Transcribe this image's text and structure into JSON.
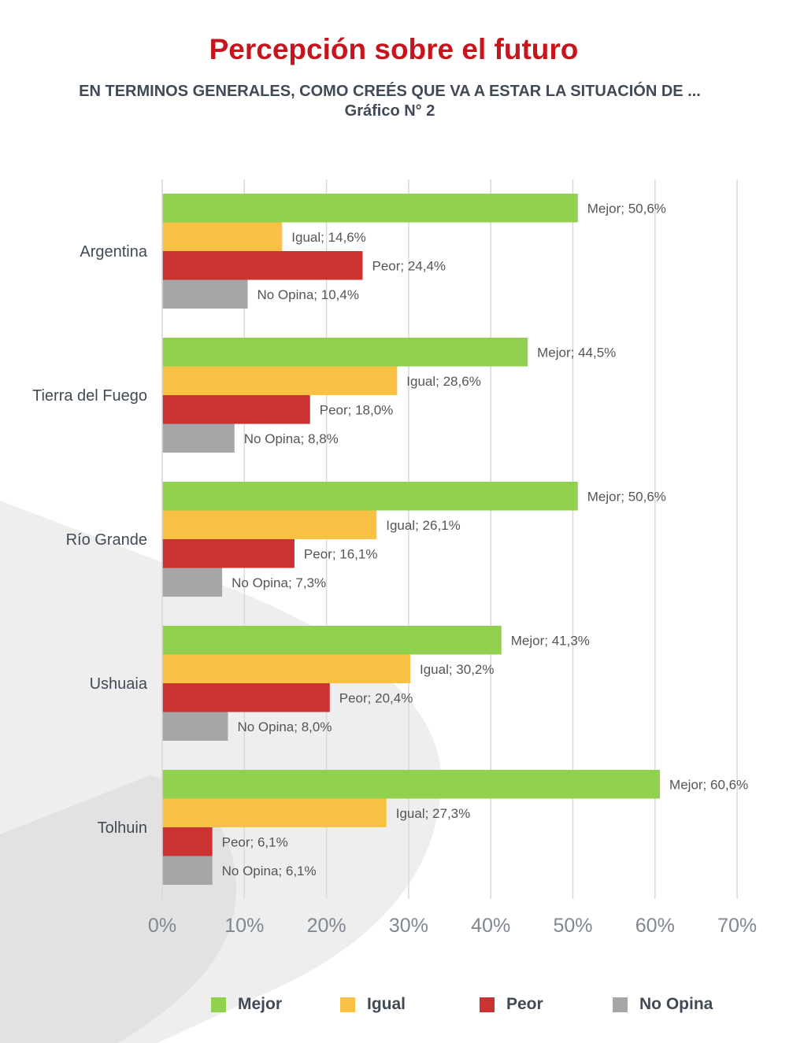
{
  "header": {
    "title": "Percepción sobre el futuro",
    "subtitle_line1": "EN TERMINOS GENERALES, COMO CREÉS QUE VA A ESTAR LA SITUACIÓN DE ...",
    "subtitle_line2": "Gráfico N° 2"
  },
  "colors": {
    "title": "#c4161c",
    "Mejor": "#92d050",
    "Igual": "#f8c144",
    "Peor": "#cc3232",
    "No Opina": "#a6a6a6"
  },
  "chart_data": {
    "type": "bar",
    "orientation": "horizontal",
    "categories": [
      "Argentina",
      "Tierra del Fuego",
      "Río Grande",
      "Ushuaia",
      "Tolhuin"
    ],
    "series": [
      {
        "name": "Mejor",
        "values": [
          50.6,
          44.5,
          50.6,
          41.3,
          60.6
        ],
        "labels": [
          "Mejor; 50,6%",
          "Mejor; 44,5%",
          "Mejor; 50,6%",
          "Mejor; 41,3%",
          "Mejor; 60,6%"
        ]
      },
      {
        "name": "Igual",
        "values": [
          14.6,
          28.6,
          26.1,
          30.2,
          27.3
        ],
        "labels": [
          "Igual; 14,6%",
          "Igual; 28,6%",
          "Igual; 26,1%",
          "Igual; 30,2%",
          "Igual; 27,3%"
        ]
      },
      {
        "name": "Peor",
        "values": [
          24.4,
          18.0,
          16.1,
          20.4,
          6.1
        ],
        "labels": [
          "Peor; 24,4%",
          "Peor; 18,0%",
          "Peor; 16,1%",
          "Peor; 20,4%",
          "Peor; 6,1%"
        ]
      },
      {
        "name": "No Opina",
        "values": [
          10.4,
          8.8,
          7.3,
          8.0,
          6.1
        ],
        "labels": [
          "No Opina; 10,4%",
          "No Opina; 8,8%",
          "No Opina; 7,3%",
          "No Opina; 8,0%",
          "No Opina; 6,1%"
        ]
      }
    ],
    "xlim": [
      0,
      70
    ],
    "xticks": [
      0,
      10,
      20,
      30,
      40,
      50,
      60,
      70
    ],
    "xtick_labels": [
      "0%",
      "10%",
      "20%",
      "30%",
      "40%",
      "50%",
      "60%",
      "70%"
    ],
    "grid": true,
    "legend": {
      "position": "bottom",
      "entries": [
        "Mejor",
        "Igual",
        "Peor",
        "No Opina"
      ]
    }
  }
}
